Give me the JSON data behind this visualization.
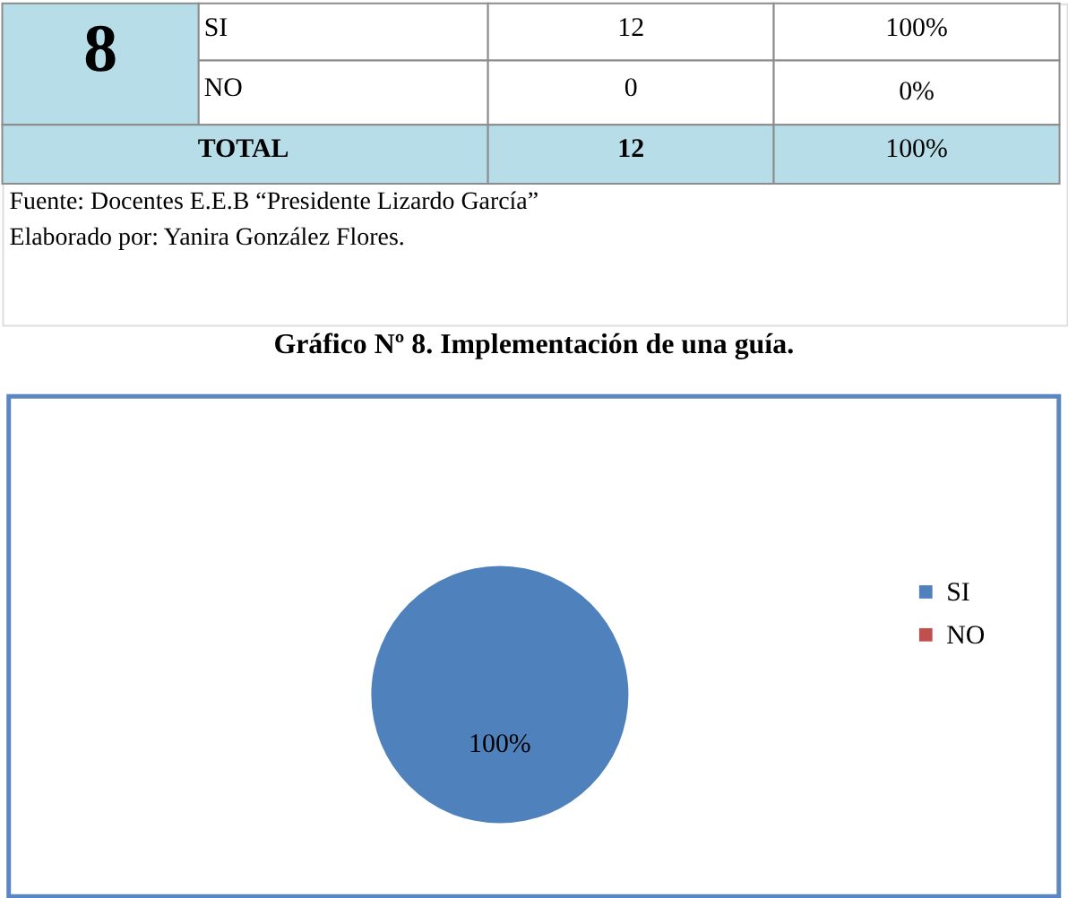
{
  "chart_data": [
    {
      "type": "other",
      "annotations": [
        "8",
        "SI",
        "12",
        "100%",
        "NO",
        "0",
        "0%",
        "TOTAL",
        "12",
        "100%",
        "Fuente: Docentes E.E.B “Presidente Lizardo García”",
        "Elaborado por: Yanira González Flores."
      ]
    },
    {
      "type": "pie",
      "title": "Gráfico Nº 8. Implementación de una guía.",
      "categories": [
        "SI",
        "NO"
      ],
      "values": [
        100,
        0
      ],
      "colors": [
        "#4f81bd",
        "#c0504d"
      ],
      "value_labels": [
        "100%",
        null
      ],
      "legend": "right"
    }
  ]
}
